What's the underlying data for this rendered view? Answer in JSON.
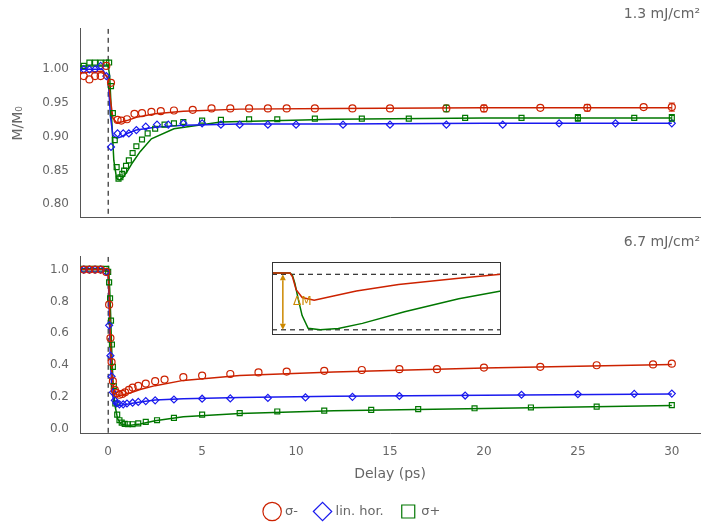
{
  "chart_data": [
    {
      "type": "scatter",
      "title": "1.3 mJ/cm²",
      "ylabel": "M/M₀",
      "xlim": [
        -1.5,
        31.5
      ],
      "ylim": [
        0.78,
        1.06
      ],
      "xticks": [
        0,
        5,
        10,
        15,
        20,
        25,
        30
      ],
      "yticks": [
        {
          "value": 0.8,
          "label": "0.80"
        },
        0.85,
        {
          "value": 0.9,
          "label": "0.90"
        },
        0.95,
        {
          "value": 1.0,
          "label": "1.00"
        }
      ],
      "grid": false,
      "tick_labels": "y",
      "series": [
        {
          "type": "scatter",
          "marker": "circle",
          "color": "#cc2200",
          "x": [
            -1.3,
            -1.0,
            -0.7,
            -0.4,
            -0.1,
            0.15,
            0.5,
            0.7,
            1.0,
            1.4,
            1.8,
            2.3,
            2.8,
            3.5,
            4.5,
            5.5,
            6.5,
            7.5,
            8.5,
            9.5,
            11.0,
            13.0,
            15.0,
            18.0,
            20.0,
            23.0,
            25.5,
            28.5,
            30.0
          ],
          "values": [
            0.99,
            0.985,
            0.99,
            0.99,
            1.005,
            0.98,
            0.925,
            0.924,
            0.926,
            0.934,
            0.935,
            0.937,
            0.938,
            0.939,
            0.94,
            0.942,
            0.942,
            0.942,
            0.942,
            0.942,
            0.942,
            0.942,
            0.942,
            0.942,
            0.942,
            0.943,
            0.943,
            0.944,
            0.944
          ]
        },
        {
          "type": "scatter",
          "marker": "diamond",
          "color": "#1a1aee",
          "x": [
            -1.3,
            -1.0,
            -0.7,
            -0.4,
            -0.1,
            0.15,
            0.5,
            0.8,
            1.1,
            1.5,
            2.0,
            2.6,
            3.2,
            4.0,
            5.0,
            6.0,
            7.0,
            8.5,
            10.0,
            12.5,
            15.0,
            18.0,
            21.0,
            24.0,
            27.0,
            30.0
          ],
          "values": [
            1.0,
            1.0,
            1.0,
            1.005,
            0.99,
            0.885,
            0.905,
            0.905,
            0.905,
            0.91,
            0.915,
            0.918,
            0.918,
            0.92,
            0.92,
            0.918,
            0.918,
            0.918,
            0.918,
            0.918,
            0.918,
            0.918,
            0.918,
            0.92,
            0.92,
            0.92
          ]
        },
        {
          "type": "scatter",
          "marker": "square",
          "color": "#007700",
          "x": [
            -1.3,
            -1.0,
            -0.7,
            -0.4,
            -0.1,
            0.05,
            0.15,
            0.25,
            0.35,
            0.45,
            0.55,
            0.65,
            0.75,
            0.85,
            0.95,
            1.1,
            1.3,
            1.5,
            1.8,
            2.1,
            2.5,
            3.0,
            3.5,
            4.0,
            5.0,
            6.0,
            7.5,
            9.0,
            11.0,
            13.5,
            16.0,
            19.0,
            22.0,
            25.0,
            28.0,
            30.0
          ],
          "values": [
            1.005,
            1.01,
            1.01,
            1.01,
            1.01,
            1.01,
            0.975,
            0.935,
            0.895,
            0.855,
            0.838,
            0.84,
            0.845,
            0.85,
            0.857,
            0.865,
            0.876,
            0.886,
            0.896,
            0.905,
            0.912,
            0.918,
            0.92,
            0.922,
            0.924,
            0.925,
            0.926,
            0.926,
            0.927,
            0.927,
            0.927,
            0.928,
            0.928,
            0.928,
            0.928,
            0.928
          ]
        },
        {
          "type": "errorbar",
          "color": "#cc2200",
          "x": [
            20.0,
            25.5,
            30.0
          ],
          "values": [
            0.942,
            0.943,
            0.944
          ],
          "errors": [
            0.005,
            0.005,
            0.006
          ]
        },
        {
          "type": "errorbar",
          "color": "#007700",
          "x": [
            18.0,
            25.0,
            30.0
          ],
          "values": [
            0.942,
            0.928,
            0.928
          ],
          "errors": [
            0.005,
            0.005,
            0.005
          ]
        },
        {
          "type": "line",
          "line_style": "solid",
          "color": "#cc2200",
          "x": [
            -1.5,
            -0.3,
            0.0,
            0.12,
            0.25,
            0.45,
            0.7,
            1.0,
            1.5,
            2.5,
            4.0,
            7.0,
            12.0,
            20.0,
            30.0
          ],
          "values": [
            0.995,
            0.997,
            0.987,
            0.955,
            0.928,
            0.921,
            0.922,
            0.924,
            0.929,
            0.934,
            0.938,
            0.941,
            0.942,
            0.943,
            0.943
          ]
        },
        {
          "type": "line",
          "line_style": "solid",
          "color": "#1a1aee",
          "x": [
            -1.5,
            -0.3,
            0.0,
            0.12,
            0.25,
            0.45,
            0.7,
            1.0,
            1.5,
            2.5,
            4.0,
            7.0,
            12.0,
            20.0,
            30.0
          ],
          "values": [
            1.0,
            1.0,
            0.985,
            0.93,
            0.902,
            0.898,
            0.9,
            0.905,
            0.91,
            0.914,
            0.917,
            0.919,
            0.919,
            0.92,
            0.92
          ]
        },
        {
          "type": "line",
          "line_style": "solid",
          "color": "#007700",
          "x": [
            -1.5,
            -0.3,
            0.0,
            0.08,
            0.18,
            0.3,
            0.45,
            0.6,
            0.8,
            1.0,
            1.3,
            1.7,
            2.3,
            3.5,
            6.0,
            12.0,
            20.0,
            30.0
          ],
          "values": [
            1.005,
            1.005,
            1.005,
            0.99,
            0.93,
            0.865,
            0.838,
            0.836,
            0.84,
            0.848,
            0.862,
            0.878,
            0.897,
            0.912,
            0.922,
            0.926,
            0.928,
            0.928
          ]
        }
      ],
      "vlines": [
        {
          "x": 0,
          "color": "#000000",
          "line_style": "dashed"
        }
      ]
    },
    {
      "type": "scatter",
      "title": "6.7 mJ/cm²",
      "xlabel": "Delay (ps)",
      "xlim": [
        -1.5,
        31.5
      ],
      "ylim": [
        -0.03,
        1.08
      ],
      "xticks": [
        0,
        5,
        10,
        15,
        20,
        25,
        30
      ],
      "yticks": [
        {
          "value": 0.0,
          "label": "0.0"
        },
        0.2,
        0.4,
        0.6,
        0.8,
        {
          "value": 1.0,
          "label": "1.0"
        }
      ],
      "grid": false,
      "legend": "bottom",
      "series": [
        {
          "name": "σ-",
          "type": "scatter",
          "marker": "circle",
          "color": "#cc2200",
          "x": [
            -1.3,
            -1.0,
            -0.7,
            -0.4,
            -0.1,
            0.05,
            0.12,
            0.18,
            0.25,
            0.35,
            0.45,
            0.6,
            0.75,
            0.9,
            1.1,
            1.3,
            1.6,
            2.0,
            2.5,
            3.0,
            4.0,
            5.0,
            6.5,
            8.0,
            9.5,
            11.5,
            13.5,
            15.5,
            17.5,
            20.0,
            23.0,
            26.0,
            29.0,
            30.0
          ],
          "values": [
            1.0,
            1.0,
            1.0,
            1.0,
            0.985,
            0.78,
            0.57,
            0.42,
            0.3,
            0.245,
            0.225,
            0.215,
            0.22,
            0.23,
            0.245,
            0.26,
            0.27,
            0.285,
            0.3,
            0.31,
            0.325,
            0.335,
            0.345,
            0.355,
            0.36,
            0.365,
            0.37,
            0.375,
            0.375,
            0.385,
            0.39,
            0.4,
            0.405,
            0.41
          ]
        },
        {
          "name": "lin. hor.",
          "type": "scatter",
          "marker": "diamond",
          "color": "#1a1aee",
          "x": [
            -1.3,
            -1.0,
            -0.7,
            -0.4,
            -0.1,
            0.05,
            0.12,
            0.18,
            0.25,
            0.35,
            0.45,
            0.6,
            0.8,
            1.0,
            1.3,
            1.6,
            2.0,
            2.5,
            3.5,
            5.0,
            6.5,
            8.5,
            10.5,
            13.0,
            15.5,
            19.0,
            22.0,
            25.0,
            28.0,
            30.0
          ],
          "values": [
            1.0,
            1.0,
            1.0,
            1.0,
            0.985,
            0.65,
            0.46,
            0.33,
            0.23,
            0.18,
            0.16,
            0.155,
            0.155,
            0.16,
            0.165,
            0.17,
            0.175,
            0.18,
            0.185,
            0.19,
            0.192,
            0.195,
            0.198,
            0.202,
            0.207,
            0.21,
            0.215,
            0.218,
            0.22,
            0.222
          ]
        },
        {
          "name": "σ+",
          "type": "scatter",
          "marker": "square",
          "color": "#007700",
          "x": [
            -1.3,
            -1.0,
            -0.7,
            -0.4,
            -0.1,
            0.0,
            0.05,
            0.1,
            0.15,
            0.2,
            0.25,
            0.3,
            0.38,
            0.48,
            0.6,
            0.72,
            0.88,
            1.05,
            1.3,
            1.6,
            2.0,
            2.6,
            3.5,
            5.0,
            7.0,
            9.0,
            11.5,
            14.0,
            16.5,
            19.5,
            22.5,
            26.0,
            30.0
          ],
          "values": [
            1.005,
            1.005,
            1.005,
            1.005,
            1.005,
            0.985,
            0.92,
            0.82,
            0.68,
            0.53,
            0.39,
            0.27,
            0.16,
            0.09,
            0.055,
            0.04,
            0.032,
            0.03,
            0.03,
            0.035,
            0.045,
            0.055,
            0.07,
            0.09,
            0.1,
            0.11,
            0.115,
            0.12,
            0.125,
            0.13,
            0.135,
            0.14,
            0.15
          ]
        },
        {
          "type": "line",
          "line_style": "solid",
          "color": "#cc2200",
          "x": [
            -1.5,
            -0.3,
            0.0,
            0.06,
            0.12,
            0.2,
            0.3,
            0.45,
            0.65,
            0.9,
            1.2,
            1.7,
            2.5,
            4.0,
            7.0,
            12.0,
            20.0,
            30.0
          ],
          "values": [
            1.0,
            1.0,
            0.99,
            0.82,
            0.55,
            0.34,
            0.245,
            0.215,
            0.21,
            0.218,
            0.228,
            0.248,
            0.272,
            0.305,
            0.335,
            0.358,
            0.383,
            0.405
          ]
        },
        {
          "type": "line",
          "line_style": "solid",
          "color": "#1a1aee",
          "x": [
            -1.5,
            -0.3,
            0.0,
            0.06,
            0.12,
            0.2,
            0.3,
            0.45,
            0.65,
            0.9,
            1.2,
            1.7,
            2.5,
            4.0,
            7.0,
            12.0,
            20.0,
            30.0
          ],
          "values": [
            1.0,
            1.0,
            0.99,
            0.72,
            0.42,
            0.24,
            0.17,
            0.148,
            0.148,
            0.153,
            0.16,
            0.17,
            0.182,
            0.19,
            0.198,
            0.205,
            0.212,
            0.22
          ]
        },
        {
          "type": "line",
          "line_style": "solid",
          "color": "#007700",
          "x": [
            -1.5,
            -0.3,
            0.0,
            0.04,
            0.08,
            0.13,
            0.18,
            0.25,
            0.35,
            0.5,
            0.68,
            0.9,
            1.2,
            1.7,
            2.5,
            4.0,
            7.0,
            12.0,
            20.0,
            30.0
          ],
          "values": [
            1.005,
            1.005,
            1.005,
            0.97,
            0.88,
            0.72,
            0.52,
            0.31,
            0.155,
            0.065,
            0.032,
            0.025,
            0.024,
            0.032,
            0.052,
            0.077,
            0.098,
            0.115,
            0.128,
            0.148
          ]
        }
      ],
      "vlines": [
        {
          "x": 0,
          "color": "#000000",
          "line_style": "dashed"
        }
      ]
    },
    {
      "type": "line",
      "xlim": [
        -0.3,
        3.5
      ],
      "ylim": [
        -0.08,
        1.05
      ],
      "grid": false,
      "tick_labels": false,
      "series": [
        {
          "type": "line",
          "line_style": "solid",
          "color": "#cc2200",
          "x": [
            -0.3,
            0.0,
            0.04,
            0.1,
            0.2,
            0.4,
            0.7,
            1.1,
            1.8,
            2.8,
            3.5
          ],
          "values": [
            0.88,
            0.88,
            0.82,
            0.62,
            0.5,
            0.46,
            0.52,
            0.6,
            0.7,
            0.8,
            0.86
          ]
        },
        {
          "type": "line",
          "line_style": "solid",
          "color": "#007700",
          "x": [
            -0.3,
            0.0,
            0.04,
            0.08,
            0.13,
            0.2,
            0.3,
            0.5,
            0.8,
            1.2,
            1.9,
            2.8,
            3.5
          ],
          "values": [
            0.88,
            0.88,
            0.84,
            0.72,
            0.5,
            0.22,
            0.025,
            0.0,
            0.02,
            0.1,
            0.28,
            0.48,
            0.6
          ]
        }
      ],
      "hlines": [
        {
          "y": 0.86,
          "color": "#000000",
          "line_style": "dashed"
        },
        {
          "y": 0.0,
          "color": "#000000",
          "line_style": "dashed"
        }
      ],
      "arrows": [
        {
          "x": -0.12,
          "from": 0.86,
          "to": 0.0,
          "color": "#cc8800"
        }
      ],
      "annotations": [
        {
          "text": "ΔM",
          "x": 0.05,
          "y": 0.43,
          "color": "#cc8800"
        }
      ]
    }
  ]
}
